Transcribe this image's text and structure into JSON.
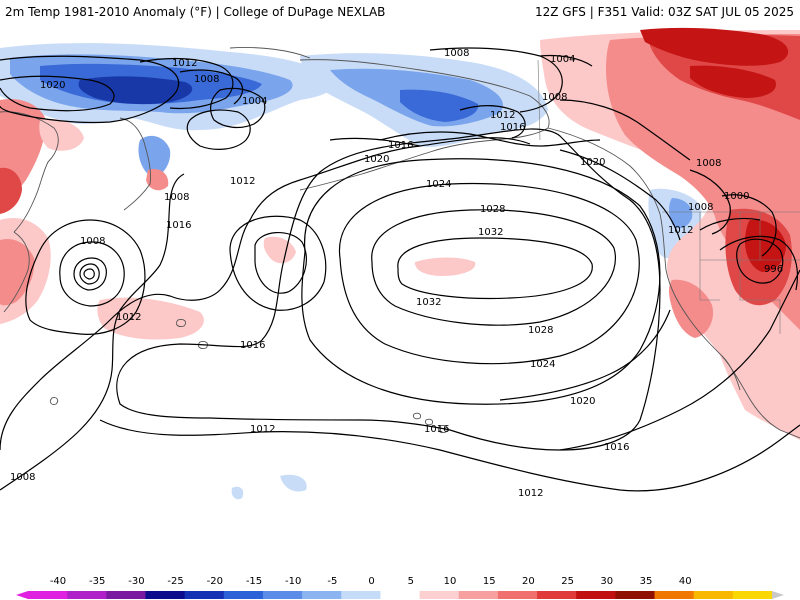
{
  "header": {
    "left_title": "2m Temp 1981-2010 Anomaly (°F) | College of DuPage NEXLAB",
    "right_title": "12Z GFS | F351 Valid: 03Z SAT JUL 05 2025"
  },
  "isobar_labels": [
    "1020",
    "1016",
    "1012",
    "1008",
    "1004",
    "1008",
    "1004",
    "1008",
    "1012",
    "1016",
    "1020",
    "1024",
    "1028",
    "1032",
    "1032",
    "1028",
    "1024",
    "1020",
    "1016",
    "1012",
    "1016",
    "1012",
    "1016",
    "1008",
    "1012",
    "1008",
    "1012",
    "1008",
    "1008",
    "1000",
    "996",
    "1012",
    "1020",
    "1008",
    "1016"
  ],
  "legend": {
    "labels": [
      "-40",
      "-35",
      "-30",
      "-25",
      "-20",
      "-15",
      "-10",
      "-5",
      "0",
      "5",
      "10",
      "15",
      "20",
      "25",
      "30",
      "35",
      "40"
    ],
    "colors": [
      "#e020e0",
      "#b020c8",
      "#7a1aa0",
      "#0c0c8c",
      "#1632b4",
      "#2c62d8",
      "#5a8ce8",
      "#8cb4f0",
      "#c4dcf8",
      "#ffffff",
      "#fcd0d0",
      "#f8a0a0",
      "#f07070",
      "#e03a3a",
      "#c01010",
      "#901000",
      "#f07800",
      "#f8b800",
      "#f8d800"
    ]
  },
  "colors": {
    "warm_light": "#fcc8c8",
    "warm_mid": "#f48c8c",
    "warm_strong": "#e04848",
    "warm_deep": "#c41414",
    "cool_light": "#c8dcf8",
    "cool_mid": "#7aa4ec",
    "cool_strong": "#3a6ad8",
    "cool_deep": "#1838a8",
    "contour": "#000000",
    "coast": "#555555"
  }
}
